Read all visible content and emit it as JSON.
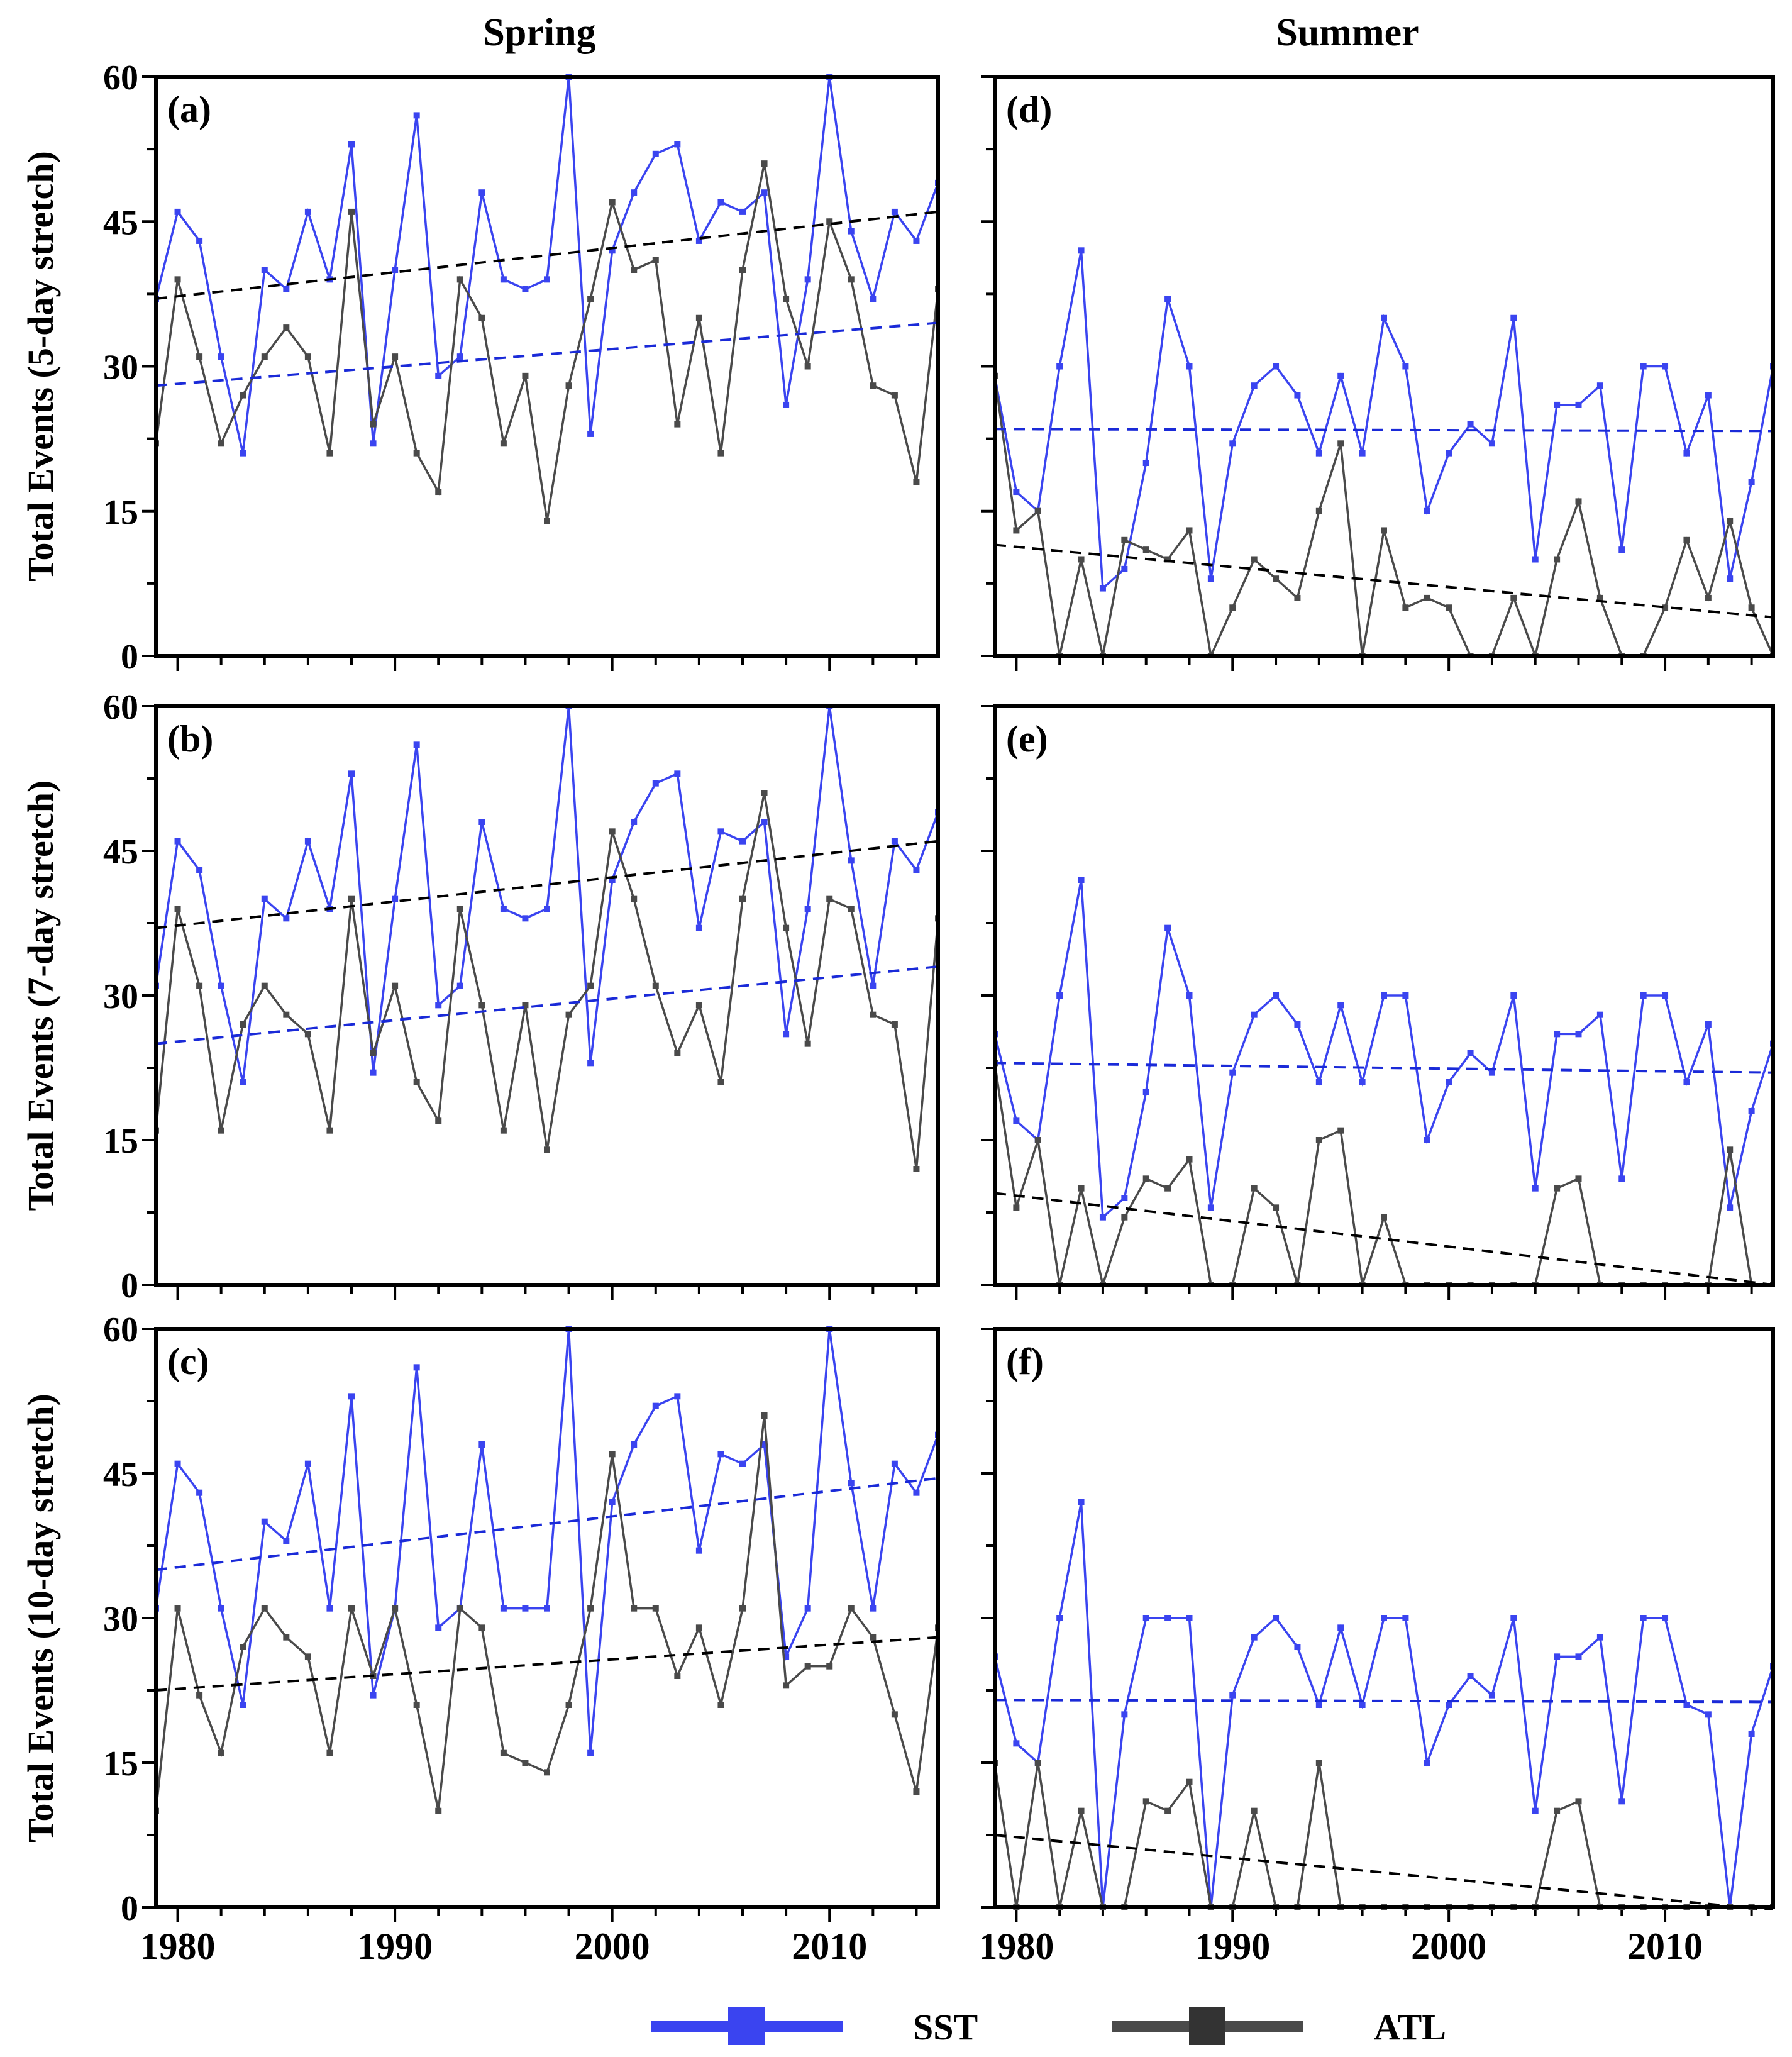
{
  "figure": {
    "col_titles": [
      "Spring",
      "Summer"
    ],
    "legend": {
      "items": [
        {
          "label": "SST",
          "color": "#3a44f0"
        },
        {
          "label": "ATL",
          "color": "#4a4a4a"
        }
      ]
    },
    "colors": {
      "sst": "#3a44f0",
      "atl": "#4a4a4a",
      "sst_trend": "#1a2ad8",
      "atl_trend": "#000000"
    }
  },
  "chart_data": [
    {
      "type": "line",
      "panel": "(a)",
      "column": "Spring",
      "ylabel": "Total Events (5-day stretch)",
      "xlim": [
        1979,
        2015
      ],
      "ylim": [
        0,
        60
      ],
      "yticks": [
        0,
        15,
        30,
        45,
        60
      ],
      "xticks": [
        1980,
        1990,
        2000,
        2010
      ],
      "x": [
        1979,
        1980,
        1981,
        1982,
        1983,
        1984,
        1985,
        1986,
        1987,
        1988,
        1989,
        1990,
        1991,
        1992,
        1993,
        1994,
        1995,
        1996,
        1997,
        1998,
        1999,
        2000,
        2001,
        2002,
        2003,
        2004,
        2005,
        2006,
        2007,
        2008,
        2009,
        2010,
        2011,
        2012,
        2013,
        2014,
        2015
      ],
      "series": [
        {
          "name": "SST",
          "values": [
            37,
            46,
            43,
            31,
            21,
            40,
            38,
            46,
            39,
            53,
            22,
            40,
            56,
            29,
            31,
            48,
            39,
            38,
            39,
            60,
            23,
            42,
            48,
            52,
            53,
            43,
            47,
            46,
            48,
            26,
            39,
            60,
            44,
            37,
            46,
            43,
            49
          ]
        },
        {
          "name": "ATL",
          "values": [
            22,
            39,
            31,
            22,
            27,
            31,
            34,
            31,
            21,
            46,
            24,
            31,
            21,
            17,
            39,
            35,
            22,
            29,
            14,
            28,
            37,
            47,
            40,
            41,
            24,
            35,
            21,
            40,
            51,
            37,
            30,
            45,
            39,
            28,
            27,
            18,
            38
          ]
        }
      ],
      "trends": [
        {
          "series": "SST",
          "start": 28,
          "end": 34.5
        },
        {
          "series": "ATL",
          "start": 37,
          "end": 46
        }
      ]
    },
    {
      "type": "line",
      "panel": "(b)",
      "column": "Spring",
      "ylabel": "Total Events (7-day stretch)",
      "xlim": [
        1979,
        2015
      ],
      "ylim": [
        0,
        60
      ],
      "yticks": [
        0,
        15,
        30,
        45,
        60
      ],
      "xticks": [
        1980,
        1990,
        2000,
        2010
      ],
      "x": [
        1979,
        1980,
        1981,
        1982,
        1983,
        1984,
        1985,
        1986,
        1987,
        1988,
        1989,
        1990,
        1991,
        1992,
        1993,
        1994,
        1995,
        1996,
        1997,
        1998,
        1999,
        2000,
        2001,
        2002,
        2003,
        2004,
        2005,
        2006,
        2007,
        2008,
        2009,
        2010,
        2011,
        2012,
        2013,
        2014,
        2015
      ],
      "series": [
        {
          "name": "SST",
          "values": [
            31,
            46,
            43,
            31,
            21,
            40,
            38,
            46,
            39,
            53,
            22,
            40,
            56,
            29,
            31,
            48,
            39,
            38,
            39,
            60,
            23,
            42,
            48,
            52,
            53,
            37,
            47,
            46,
            48,
            26,
            39,
            60,
            44,
            31,
            46,
            43,
            49
          ]
        },
        {
          "name": "ATL",
          "values": [
            16,
            39,
            31,
            16,
            27,
            31,
            28,
            26,
            16,
            40,
            24,
            31,
            21,
            17,
            39,
            29,
            16,
            29,
            14,
            28,
            31,
            47,
            40,
            31,
            24,
            29,
            21,
            40,
            51,
            37,
            25,
            40,
            39,
            28,
            27,
            12,
            38
          ]
        }
      ],
      "trends": [
        {
          "series": "SST",
          "start": 25,
          "end": 33
        },
        {
          "series": "ATL",
          "start": 37,
          "end": 46
        }
      ]
    },
    {
      "type": "line",
      "panel": "(c)",
      "column": "Spring",
      "ylabel": "Total Events (10-day stretch)",
      "xlim": [
        1979,
        2015
      ],
      "ylim": [
        0,
        60
      ],
      "yticks": [
        0,
        15,
        30,
        45,
        60
      ],
      "xticks": [
        1980,
        1990,
        2000,
        2010
      ],
      "x": [
        1979,
        1980,
        1981,
        1982,
        1983,
        1984,
        1985,
        1986,
        1987,
        1988,
        1989,
        1990,
        1991,
        1992,
        1993,
        1994,
        1995,
        1996,
        1997,
        1998,
        1999,
        2000,
        2001,
        2002,
        2003,
        2004,
        2005,
        2006,
        2007,
        2008,
        2009,
        2010,
        2011,
        2012,
        2013,
        2014,
        2015
      ],
      "series": [
        {
          "name": "SST",
          "values": [
            31,
            46,
            43,
            31,
            21,
            40,
            38,
            46,
            31,
            53,
            22,
            31,
            56,
            29,
            31,
            48,
            31,
            31,
            31,
            60,
            16,
            42,
            48,
            52,
            53,
            37,
            47,
            46,
            48,
            26,
            31,
            60,
            44,
            31,
            46,
            43,
            49
          ]
        },
        {
          "name": "ATL",
          "values": [
            10,
            31,
            22,
            16,
            27,
            31,
            28,
            26,
            16,
            31,
            24,
            31,
            21,
            10,
            31,
            29,
            16,
            15,
            14,
            21,
            31,
            47,
            31,
            31,
            24,
            29,
            21,
            31,
            51,
            23,
            25,
            25,
            31,
            28,
            20,
            12,
            29
          ]
        }
      ],
      "trends": [
        {
          "series": "SST",
          "start": 35,
          "end": 44.5
        },
        {
          "series": "ATL",
          "start": 22.5,
          "end": 28
        }
      ]
    },
    {
      "type": "line",
      "panel": "(d)",
      "column": "Summer",
      "ylabel": "",
      "xlim": [
        1979,
        2015
      ],
      "ylim": [
        0,
        60
      ],
      "yticks": [
        0,
        15,
        30,
        45,
        60
      ],
      "xticks": [
        1980,
        1990,
        2000,
        2010
      ],
      "x": [
        1979,
        1980,
        1981,
        1982,
        1983,
        1984,
        1985,
        1986,
        1987,
        1988,
        1989,
        1990,
        1991,
        1992,
        1993,
        1994,
        1995,
        1996,
        1997,
        1998,
        1999,
        2000,
        2001,
        2002,
        2003,
        2004,
        2005,
        2006,
        2007,
        2008,
        2009,
        2010,
        2011,
        2012,
        2013,
        2014,
        2015
      ],
      "series": [
        {
          "name": "SST",
          "values": [
            29,
            17,
            15,
            30,
            42,
            7,
            9,
            20,
            37,
            30,
            8,
            22,
            28,
            30,
            27,
            21,
            29,
            21,
            35,
            30,
            15,
            21,
            24,
            22,
            35,
            10,
            26,
            26,
            28,
            11,
            30,
            30,
            21,
            27,
            8,
            18,
            30
          ]
        },
        {
          "name": "ATL",
          "values": [
            29,
            13,
            15,
            0,
            10,
            0,
            12,
            11,
            10,
            13,
            0,
            5,
            10,
            8,
            6,
            15,
            22,
            0,
            13,
            5,
            6,
            5,
            0,
            0,
            6,
            0,
            10,
            16,
            6,
            0,
            0,
            5,
            12,
            6,
            14,
            5,
            0
          ]
        }
      ],
      "trends": [
        {
          "series": "SST",
          "start": 23.5,
          "end": 23.3
        },
        {
          "series": "ATL",
          "start": 11.5,
          "end": 4
        }
      ]
    },
    {
      "type": "line",
      "panel": "(e)",
      "column": "Summer",
      "ylabel": "",
      "xlim": [
        1979,
        2015
      ],
      "ylim": [
        0,
        60
      ],
      "yticks": [
        0,
        15,
        30,
        45,
        60
      ],
      "xticks": [
        1980,
        1990,
        2000,
        2010
      ],
      "x": [
        1979,
        1980,
        1981,
        1982,
        1983,
        1984,
        1985,
        1986,
        1987,
        1988,
        1989,
        1990,
        1991,
        1992,
        1993,
        1994,
        1995,
        1996,
        1997,
        1998,
        1999,
        2000,
        2001,
        2002,
        2003,
        2004,
        2005,
        2006,
        2007,
        2008,
        2009,
        2010,
        2011,
        2012,
        2013,
        2014,
        2015
      ],
      "series": [
        {
          "name": "SST",
          "values": [
            26,
            17,
            15,
            30,
            42,
            7,
            9,
            20,
            37,
            30,
            8,
            22,
            28,
            30,
            27,
            21,
            29,
            21,
            30,
            30,
            15,
            21,
            24,
            22,
            30,
            10,
            26,
            26,
            28,
            11,
            30,
            30,
            21,
            27,
            8,
            18,
            25
          ]
        },
        {
          "name": "ATL",
          "values": [
            23,
            8,
            15,
            0,
            10,
            0,
            7,
            11,
            10,
            13,
            0,
            0,
            10,
            8,
            0,
            15,
            16,
            0,
            7,
            0,
            0,
            0,
            0,
            0,
            0,
            0,
            10,
            11,
            0,
            0,
            0,
            0,
            0,
            0,
            14,
            0,
            0
          ]
        }
      ],
      "trends": [
        {
          "series": "SST",
          "start": 23,
          "end": 22
        }
      ],
      "trends_atl": {
        "start": 9.5,
        "end": 0
      }
    },
    {
      "type": "line",
      "panel": "(f)",
      "column": "Summer",
      "ylabel": "",
      "xlim": [
        1979,
        2015
      ],
      "ylim": [
        0,
        60
      ],
      "yticks": [
        0,
        15,
        30,
        45,
        60
      ],
      "xticks": [
        1980,
        1990,
        2000,
        2010
      ],
      "x": [
        1979,
        1980,
        1981,
        1982,
        1983,
        1984,
        1985,
        1986,
        1987,
        1988,
        1989,
        1990,
        1991,
        1992,
        1993,
        1994,
        1995,
        1996,
        1997,
        1998,
        1999,
        2000,
        2001,
        2002,
        2003,
        2004,
        2005,
        2006,
        2007,
        2008,
        2009,
        2010,
        2011,
        2012,
        2013,
        2014,
        2015
      ],
      "series": [
        {
          "name": "SST",
          "values": [
            26,
            17,
            15,
            30,
            42,
            0,
            20,
            30,
            30,
            30,
            0,
            22,
            28,
            30,
            27,
            21,
            29,
            21,
            30,
            30,
            15,
            21,
            24,
            22,
            30,
            10,
            26,
            26,
            28,
            11,
            30,
            30,
            21,
            20,
            0,
            18,
            25
          ]
        },
        {
          "name": "ATL",
          "values": [
            15,
            0,
            15,
            0,
            10,
            0,
            0,
            11,
            10,
            13,
            0,
            0,
            10,
            0,
            0,
            15,
            0,
            0,
            0,
            0,
            0,
            0,
            0,
            0,
            0,
            0,
            10,
            11,
            0,
            0,
            0,
            0,
            0,
            0,
            0,
            0,
            0
          ]
        }
      ],
      "trends": [
        {
          "series": "SST",
          "start": 21.5,
          "end": 21.3
        }
      ],
      "trends_atl": {
        "start": 7.5,
        "end": -0.3
      }
    }
  ]
}
